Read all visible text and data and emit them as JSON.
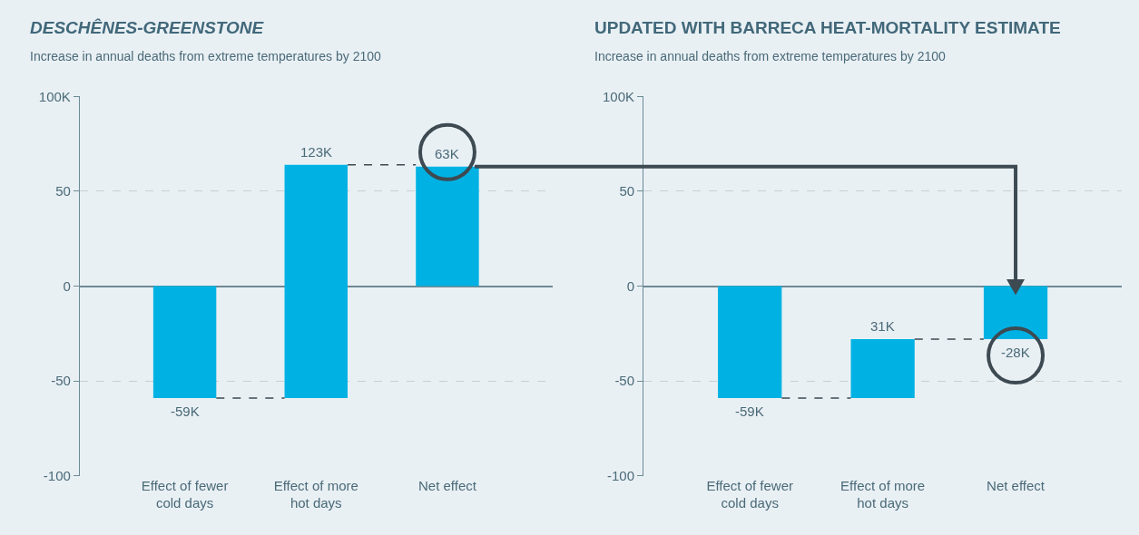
{
  "chart_data": [
    {
      "type": "bar",
      "title": "DESCHÊNES-GREENSTONE",
      "subtitle": "Increase in annual deaths from extreme temperatures by 2100",
      "categories": [
        "Effect of fewer cold days",
        "Effect of more hot days",
        "Net effect"
      ],
      "values": [
        -59,
        123,
        63
      ],
      "base": [
        0,
        -59,
        0
      ],
      "value_labels": [
        "-59K",
        "123K",
        "63K"
      ],
      "color": "#00b2e3",
      "ylim": [
        -100,
        100
      ],
      "yticks": [
        -100,
        -50,
        0,
        50,
        {
          "value": 100,
          "label": "100K"
        }
      ],
      "grid": "y"
    },
    {
      "type": "bar",
      "title": "UPDATED WITH BARRECA HEAT-MORTALITY ESTIMATE",
      "subtitle": "Increase in annual deaths from extreme temperatures by 2100",
      "categories": [
        "Effect of fewer cold days",
        "Effect of more hot days",
        "Net effect"
      ],
      "values": [
        -59,
        31,
        -28
      ],
      "base": [
        0,
        -59,
        0
      ],
      "value_labels": [
        "-59K",
        "31K",
        "-28K"
      ],
      "color": "#00b2e3",
      "ylim": [
        -100,
        100
      ],
      "yticks": [
        -100,
        -50,
        0,
        50,
        {
          "value": 100,
          "label": "100K"
        }
      ],
      "grid": "y"
    }
  ]
}
